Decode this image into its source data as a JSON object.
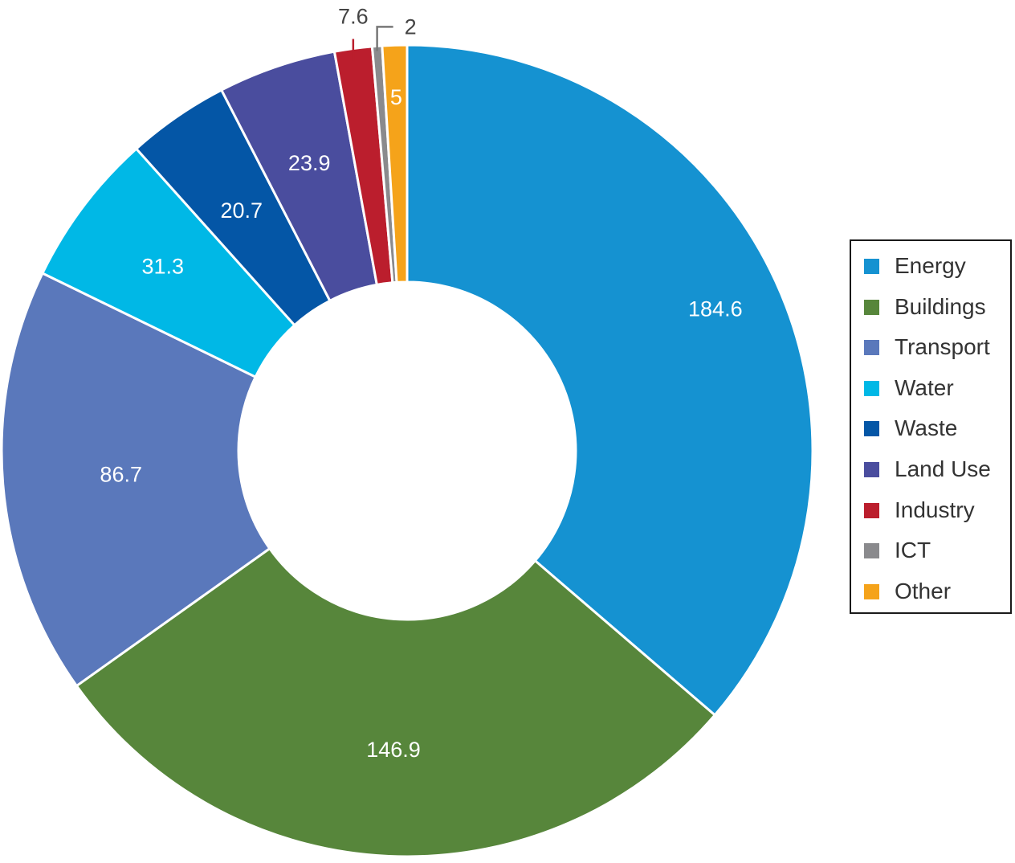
{
  "chart_data": {
    "type": "pie",
    "variant": "donut",
    "title": "",
    "legend_position": "right",
    "categories": [
      "Energy",
      "Buildings",
      "Transport",
      "Water",
      "Waste",
      "Land Use",
      "Industry",
      "ICT",
      "Other"
    ],
    "values": [
      184.6,
      146.9,
      86.7,
      31.3,
      20.7,
      23.9,
      7.6,
      2,
      5
    ],
    "colors": [
      "#1592d1",
      "#57863b",
      "#5a78bb",
      "#00b8e6",
      "#0456a6",
      "#4a4d9e",
      "#bb1e2d",
      "#8a8a8d",
      "#f5a31a"
    ],
    "data_labels": [
      "184.6",
      "146.9",
      "86.7",
      "31.3",
      "20.7",
      "23.9",
      "7.6",
      "2",
      "5"
    ],
    "data_label_colors": [
      "#ffffff",
      "#ffffff",
      "#ffffff",
      "#ffffff",
      "#ffffff",
      "#ffffff",
      "#444444",
      "#444444",
      "#ffffff"
    ],
    "outside_labels": [
      "7.6",
      "2"
    ]
  },
  "legend": {
    "items": [
      {
        "label": "Energy",
        "color": "#1592d1"
      },
      {
        "label": "Buildings",
        "color": "#57863b"
      },
      {
        "label": "Transport",
        "color": "#5a78bb"
      },
      {
        "label": "Water",
        "color": "#00b8e6"
      },
      {
        "label": "Waste",
        "color": "#0456a6"
      },
      {
        "label": "Land Use",
        "color": "#4a4d9e"
      },
      {
        "label": "Industry",
        "color": "#bb1e2d"
      },
      {
        "label": "ICT",
        "color": "#8a8a8d"
      },
      {
        "label": "Other",
        "color": "#f5a31a"
      }
    ]
  }
}
